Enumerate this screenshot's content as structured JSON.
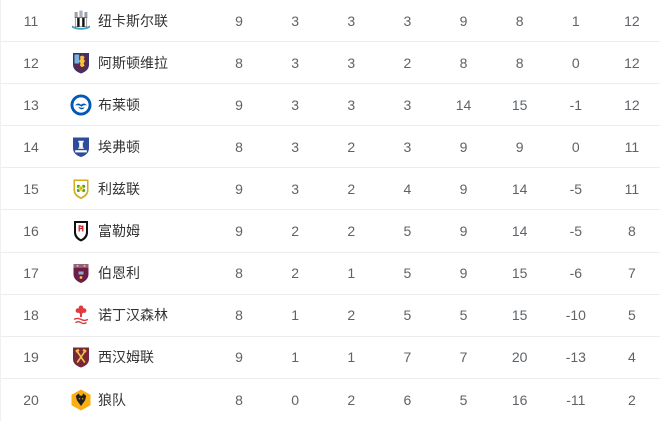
{
  "page": {
    "description_colors": {
      "background": "#ffffff",
      "row_separator": "#ededed",
      "rank_text": "#5f6368",
      "team_text": "#333333",
      "stat_text": "#5f6368"
    }
  },
  "standings": {
    "rows": [
      {
        "rank": "11",
        "team": "纽卡斯尔联",
        "crest": "newcastle-united-crest",
        "crest_colors": [
          "#111111",
          "#ffffff",
          "#41a0c4",
          "#98a1a8"
        ],
        "played": "9",
        "won": "3",
        "drawn": "3",
        "lost": "3",
        "goals_for": "9",
        "goals_against": "8",
        "goal_diff": "1",
        "points": "12"
      },
      {
        "rank": "12",
        "team": "阿斯顿维拉",
        "crest": "aston-villa-crest",
        "crest_colors": [
          "#31356e",
          "#5e2750",
          "#f2c43d",
          "#7ab3dd"
        ],
        "played": "8",
        "won": "3",
        "drawn": "3",
        "lost": "2",
        "goals_for": "8",
        "goals_against": "8",
        "goal_diff": "0",
        "points": "12"
      },
      {
        "rank": "13",
        "team": "布莱顿",
        "crest": "brighton-crest",
        "crest_colors": [
          "#0057b8",
          "#ffffff"
        ],
        "played": "9",
        "won": "3",
        "drawn": "3",
        "lost": "3",
        "goals_for": "14",
        "goals_against": "15",
        "goal_diff": "-1",
        "points": "12"
      },
      {
        "rank": "14",
        "team": "埃弗顿",
        "crest": "everton-crest",
        "crest_colors": [
          "#2f4c9a",
          "#ffffff"
        ],
        "played": "8",
        "won": "3",
        "drawn": "2",
        "lost": "3",
        "goals_for": "9",
        "goals_against": "9",
        "goal_diff": "0",
        "points": "11"
      },
      {
        "rank": "15",
        "team": "利兹联",
        "crest": "leeds-united-crest",
        "crest_colors": [
          "#d4aa1e",
          "#ffffff",
          "#4f9e3c",
          "#e9d94a"
        ],
        "played": "9",
        "won": "3",
        "drawn": "2",
        "lost": "4",
        "goals_for": "9",
        "goals_against": "14",
        "goal_diff": "-5",
        "points": "11"
      },
      {
        "rank": "16",
        "team": "富勒姆",
        "crest": "fulham-crest",
        "crest_colors": [
          "#111111",
          "#ffffff",
          "#cc2229"
        ],
        "played": "9",
        "won": "2",
        "drawn": "2",
        "lost": "5",
        "goals_for": "9",
        "goals_against": "14",
        "goal_diff": "-5",
        "points": "8"
      },
      {
        "rank": "17",
        "team": "伯恩利",
        "crest": "burnley-crest",
        "crest_colors": [
          "#6c1d45",
          "#95627d",
          "#9dc2e0",
          "#f2c43d"
        ],
        "played": "8",
        "won": "2",
        "drawn": "1",
        "lost": "5",
        "goals_for": "9",
        "goals_against": "15",
        "goal_diff": "-6",
        "points": "7"
      },
      {
        "rank": "18",
        "team": "诺丁汉森林",
        "crest": "nottingham-forest-crest",
        "crest_colors": [
          "#e03a3e",
          "#ffffff"
        ],
        "played": "8",
        "won": "1",
        "drawn": "2",
        "lost": "5",
        "goals_for": "5",
        "goals_against": "15",
        "goal_diff": "-10",
        "points": "5"
      },
      {
        "rank": "19",
        "team": "西汉姆联",
        "crest": "west-ham-crest",
        "crest_colors": [
          "#7a263a",
          "#f3c142"
        ],
        "played": "9",
        "won": "1",
        "drawn": "1",
        "lost": "7",
        "goals_for": "7",
        "goals_against": "20",
        "goal_diff": "-13",
        "points": "4"
      },
      {
        "rank": "20",
        "team": "狼队",
        "crest": "wolves-crest",
        "crest_colors": [
          "#f9b014",
          "#231f20"
        ],
        "played": "8",
        "won": "0",
        "drawn": "2",
        "lost": "6",
        "goals_for": "5",
        "goals_against": "16",
        "goal_diff": "-11",
        "points": "2"
      }
    ]
  }
}
